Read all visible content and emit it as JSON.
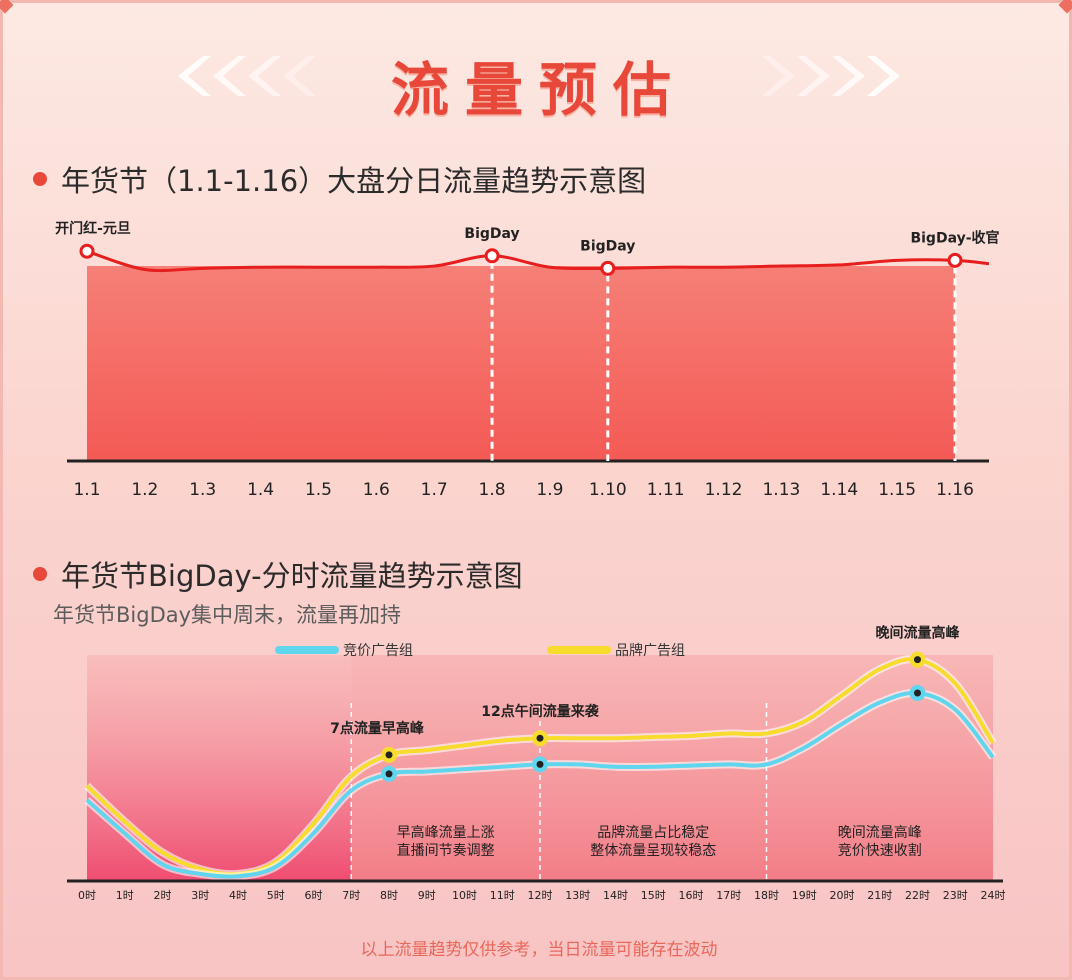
{
  "page_title": "流量预估",
  "chart1_title": "年货节（1.1-1.16）大盘分日流量趋势示意图",
  "chart2_title": "年货节BigDay-分时流量趋势示意图",
  "chart2_subtitle": "年货节BigDay集中周末，流量再加持",
  "footnote": "以上流量趋势仅供参考，当日流量可能存在波动",
  "colors": {
    "accent": "#e8483a",
    "line_red": "#e61e1e",
    "series_blue": "#5fd6ee",
    "series_yellow": "#f7dc2e"
  },
  "chart_data": [
    {
      "type": "line",
      "title": "年货节（1.1-1.16）大盘分日流量趋势示意图",
      "categories": [
        "1.1",
        "1.2",
        "1.3",
        "1.4",
        "1.5",
        "1.6",
        "1.7",
        "1.8",
        "1.9",
        "1.10",
        "1.11",
        "1.12",
        "1.13",
        "1.14",
        "1.15",
        "1.16"
      ],
      "values": [
        92,
        84,
        84.5,
        85,
        85,
        85,
        85.5,
        90,
        85,
        84.5,
        85,
        85,
        85.5,
        86,
        88,
        88
      ],
      "end_value": 86.5,
      "ylim": [
        0,
        100
      ],
      "annotations": [
        {
          "x": "1.1",
          "label": "开门红-元旦",
          "dashed": false
        },
        {
          "x": "1.8",
          "label": "BigDay",
          "dashed": true
        },
        {
          "x": "1.10",
          "label": "BigDay",
          "dashed": true
        },
        {
          "x": "1.16",
          "label": "BigDay-收官",
          "dashed": true
        }
      ]
    },
    {
      "type": "line",
      "title": "年货节BigDay-分时流量趋势示意图",
      "categories": [
        "0时",
        "1时",
        "2时",
        "3时",
        "4时",
        "5时",
        "6时",
        "7时",
        "8时",
        "9时",
        "10时",
        "11时",
        "12时",
        "13时",
        "14时",
        "15时",
        "16时",
        "17时",
        "18时",
        "19时",
        "20时",
        "21时",
        "22时",
        "23时",
        "24时"
      ],
      "series": [
        {
          "name": "竞价广告组",
          "color": "#5fd6ee",
          "values": [
            34,
            20,
            7,
            3,
            2,
            6,
            20,
            38,
            45,
            46,
            47,
            48,
            49,
            49,
            48,
            48,
            48.5,
            49,
            49,
            56,
            66,
            75,
            79,
            72,
            52
          ]
        },
        {
          "name": "品牌广告组",
          "color": "#f7dc2e",
          "values": [
            40,
            25,
            12,
            5,
            3,
            8,
            24,
            44,
            53,
            55,
            57,
            59,
            60,
            60,
            60,
            60.5,
            61,
            62,
            62,
            67,
            78,
            89,
            93,
            83,
            58
          ]
        }
      ],
      "ylim": [
        0,
        100
      ],
      "segments": [
        {
          "from": 0,
          "to": 7,
          "text": []
        },
        {
          "from": 7,
          "to": 12,
          "text": [
            "早高峰流量上涨",
            "直播间节奏调整"
          ]
        },
        {
          "from": 12,
          "to": 18,
          "text": [
            "品牌流量占比稳定",
            "整体流量呈现较稳态"
          ]
        },
        {
          "from": 18,
          "to": 24,
          "text": [
            "晚间流量高峰",
            "竞价快速收割"
          ]
        }
      ],
      "callouts": [
        {
          "x": 8,
          "label": "7点流量早高峰"
        },
        {
          "x": 12,
          "label": "12点午间流量来袭"
        },
        {
          "x": 22,
          "label": "晚间流量高峰"
        }
      ]
    }
  ]
}
